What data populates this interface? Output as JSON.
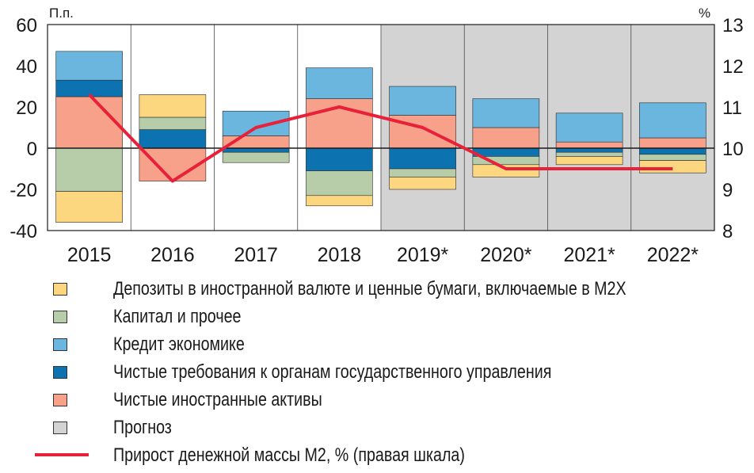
{
  "chart_data": {
    "type": "bar",
    "categories": [
      "2015",
      "2016",
      "2017",
      "2018",
      "2019*",
      "2020*",
      "2021*",
      "2022*"
    ],
    "forecast_from_index": 4,
    "left_axis": {
      "unit": "П.п.",
      "ylim": [
        -40,
        60
      ],
      "ticks": [
        60,
        40,
        20,
        0,
        -20,
        -40
      ]
    },
    "right_axis": {
      "unit": "%",
      "ylim": [
        8,
        13
      ],
      "ticks": [
        13,
        12,
        11,
        10,
        9,
        8
      ]
    },
    "series": [
      {
        "name": "Чистые иностранные активы",
        "color": "#f7a08a",
        "values": [
          25,
          -16,
          6,
          24,
          16,
          10,
          3,
          5
        ]
      },
      {
        "name": "Чистые требования к органам государственного управления",
        "color": "#0d73b0",
        "values": [
          8,
          9,
          -2,
          -11,
          -10,
          -4,
          -2,
          -3
        ]
      },
      {
        "name": "Кредит экономике",
        "color": "#6ab6df",
        "values": [
          14,
          0,
          12,
          15,
          14,
          14,
          14,
          17
        ]
      },
      {
        "name": "Капитал и прочее",
        "color": "#b7cca8",
        "values": [
          -21,
          6,
          -5,
          -12,
          -4,
          -4,
          -2,
          -3
        ]
      },
      {
        "name": "Депозиты в иностранной валюте и ценные бумаги, включаемые в М2Х",
        "color": "#fdd77f",
        "values": [
          -15,
          11,
          0,
          -5,
          -6,
          -6,
          -4,
          -6
        ]
      }
    ],
    "line": {
      "name": "Прирост денежной массы М2, % (правая шкала)",
      "color": "#e8213a",
      "values": [
        11.3,
        9.2,
        10.5,
        11.0,
        10.5,
        9.5,
        9.5,
        9.5
      ]
    },
    "legend": [
      {
        "label": "Депозиты в иностранной валюте и ценные бумаги, включаемые в М2Х",
        "color": "#fdd77f",
        "kind": "box"
      },
      {
        "label": "Капитал и прочее",
        "color": "#b7cca8",
        "kind": "box"
      },
      {
        "label": "Кредит экономике",
        "color": "#6ab6df",
        "kind": "box"
      },
      {
        "label": "Чистые требования к органам государственного управления",
        "color": "#0d73b0",
        "kind": "box"
      },
      {
        "label": "Чистые иностранные активы",
        "color": "#f7a08a",
        "kind": "box"
      },
      {
        "label": "Прогноз",
        "color": "#d3d3d3",
        "kind": "box"
      },
      {
        "label": "Прирост денежной массы М2, % (правая шкала)",
        "color": "#e8213a",
        "kind": "line"
      }
    ],
    "forecast_shading_color": "#d3d3d3",
    "grid": false
  }
}
